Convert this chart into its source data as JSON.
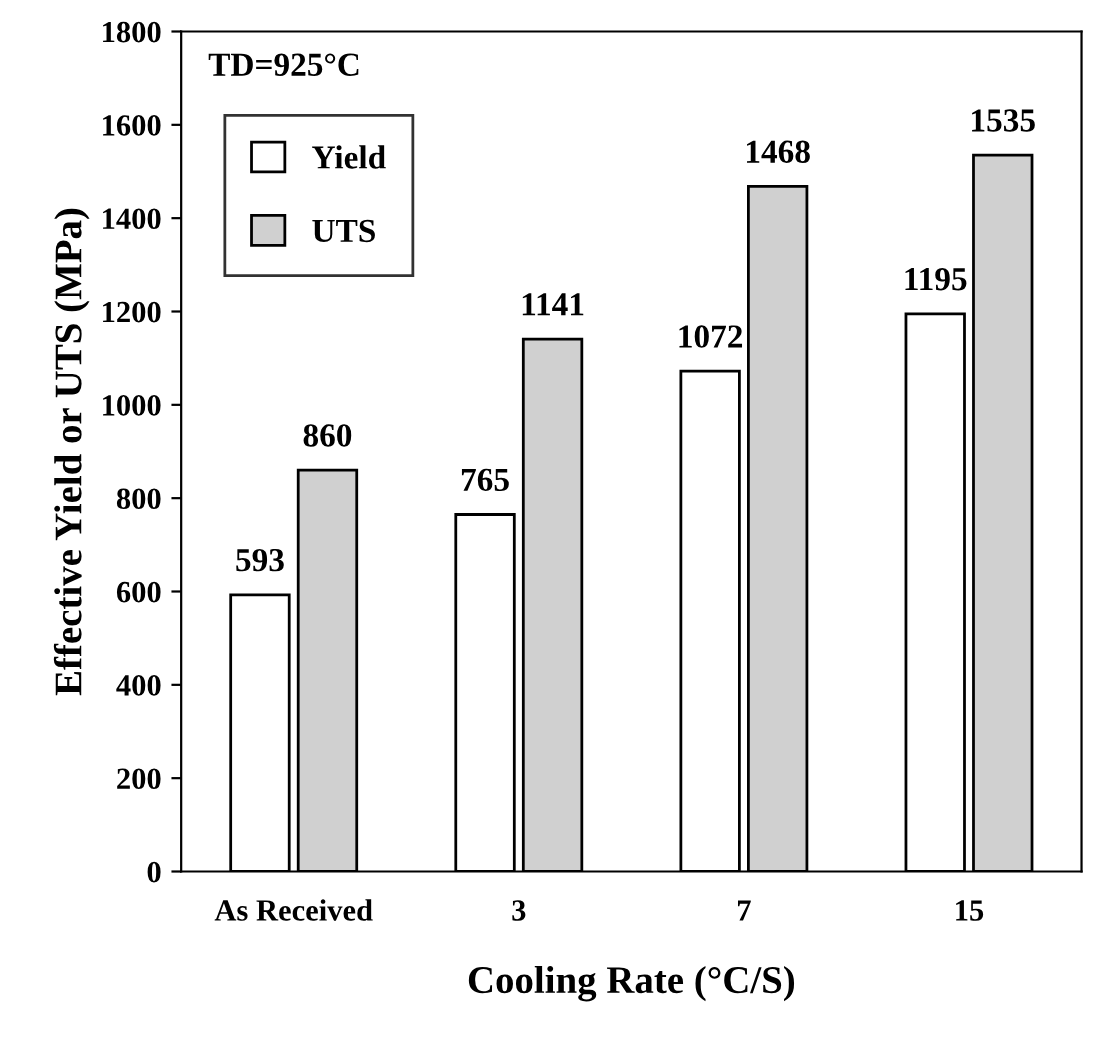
{
  "chart_data": {
    "type": "bar",
    "xlabel": "Cooling Rate (°C/S)",
    "ylabel": "Effective Yield or UTS (MPa)",
    "categories": [
      "As Received",
      "3",
      "7",
      "15"
    ],
    "series": [
      {
        "name": "Yield",
        "color": "#ffffff",
        "values": [
          593,
          765,
          1072,
          1195
        ]
      },
      {
        "name": "UTS",
        "color": "#d0d0d0",
        "values": [
          860,
          1141,
          1468,
          1535
        ]
      }
    ],
    "annotations": [
      "TD=925°C"
    ],
    "ylim": [
      0,
      1800
    ],
    "yticks": [
      0,
      200,
      400,
      600,
      800,
      1000,
      1200,
      1400,
      1600,
      1800
    ],
    "data_labels": true,
    "legend": "top left",
    "grid": false
  }
}
